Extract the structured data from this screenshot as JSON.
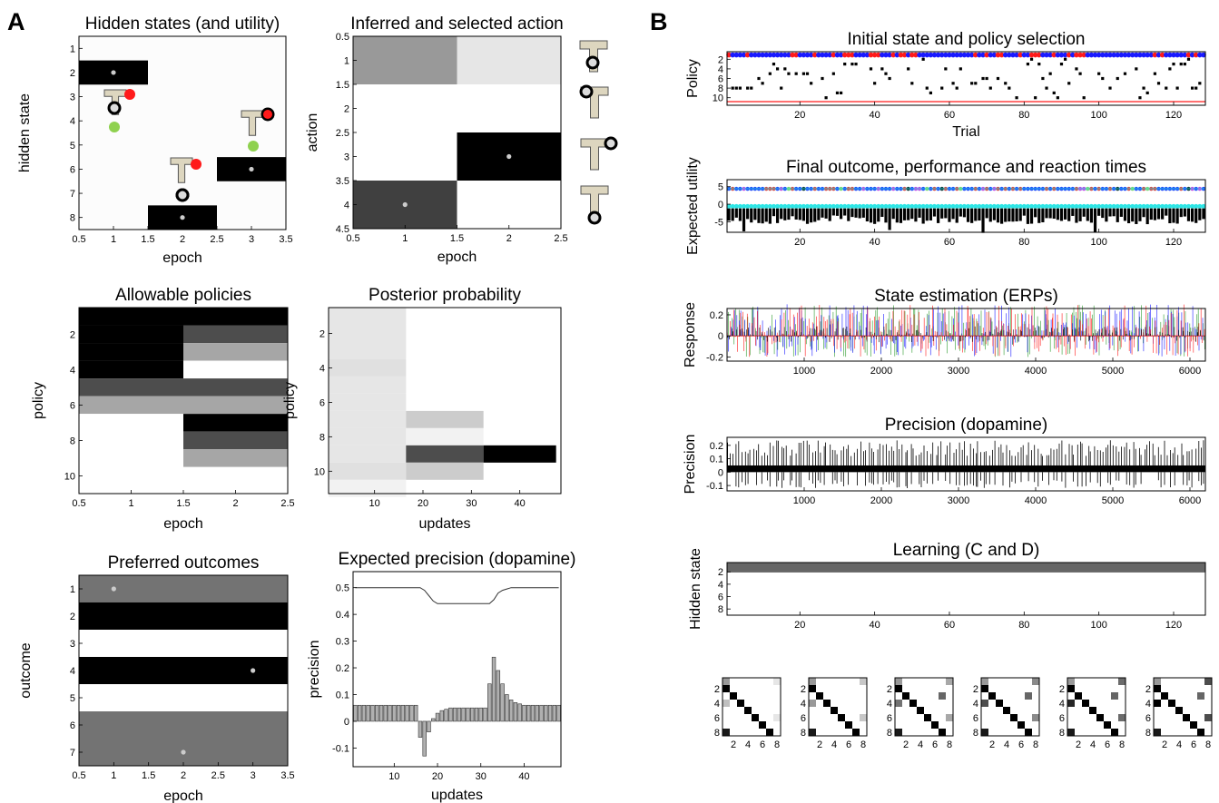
{
  "panel_labels": [
    "A",
    "B"
  ],
  "colors": {
    "tmaze": "#ddd6bf",
    "red": "#ff1a1a",
    "green": "#8fd14f",
    "blue": "#1a1aff",
    "cyan": "#2ee6e6",
    "magenta": "#e61ae6",
    "bar": "#b0b0b0"
  },
  "chart_data": [
    {
      "id": "hidden",
      "type": "heatmap",
      "title": "Hidden states (and utility)",
      "xlabel": "epoch",
      "ylabel": "hidden state",
      "xlim": [
        0.5,
        3.5
      ],
      "ylim": [
        0.5,
        8.5
      ],
      "xticks": [
        "0.5",
        "1",
        "1.5",
        "2",
        "2.5",
        "3",
        "3.5"
      ],
      "yticks": [
        "1",
        "2",
        "3",
        "4",
        "5",
        "6",
        "7",
        "8"
      ],
      "cells": [
        {
          "col": 1,
          "row": 2,
          "v": 1
        },
        {
          "col": 2,
          "row": 8,
          "v": 1
        },
        {
          "col": 3,
          "row": 6,
          "v": 1
        }
      ],
      "markers": [
        {
          "x": 1,
          "y": 2
        },
        {
          "x": 2,
          "y": 8
        },
        {
          "x": 3,
          "y": 6
        }
      ]
    },
    {
      "id": "action",
      "type": "heatmap",
      "title": "Inferred and selected action",
      "xlabel": "epoch",
      "ylabel": "action",
      "xlim": [
        0.5,
        2.5
      ],
      "ylim": [
        0.5,
        4.5
      ],
      "xticks": [
        "0.5",
        "1",
        "1.5",
        "2",
        "2.5"
      ],
      "yticks": [
        "0.5",
        "1",
        "1.5",
        "2",
        "2.5",
        "3",
        "3.5",
        "4",
        "4.5"
      ],
      "matrix": [
        [
          0.4,
          0.1
        ],
        [
          0,
          0
        ],
        [
          0,
          1
        ],
        [
          0.75,
          0
        ]
      ],
      "markers": [
        {
          "x": 2,
          "y": 3
        },
        {
          "x": 1,
          "y": 4
        }
      ]
    },
    {
      "id": "policies",
      "type": "heatmap",
      "title": "Allowable policies",
      "xlabel": "epoch",
      "ylabel": "policy",
      "xlim": [
        0.5,
        2.5
      ],
      "xticks": [
        "0.5",
        "1",
        "1.5",
        "2",
        "2.5"
      ],
      "yticks": [
        "2",
        "4",
        "6",
        "8",
        "10"
      ],
      "matrix": [
        [
          1,
          1
        ],
        [
          1,
          0.7
        ],
        [
          1,
          0.35
        ],
        [
          1,
          0
        ],
        [
          0.7,
          0.7
        ],
        [
          0.35,
          0.35
        ],
        [
          0,
          1
        ],
        [
          0,
          0.7
        ],
        [
          0,
          0.35
        ],
        [
          0,
          0
        ]
      ]
    },
    {
      "id": "posterior",
      "type": "heatmap",
      "title": "Posterior probability",
      "xlabel": "updates",
      "ylabel": "policy",
      "xticks": [
        "10",
        "20",
        "30",
        "40"
      ],
      "yticks": [
        "2",
        "4",
        "6",
        "8",
        "10"
      ],
      "segments": [
        [
          0.1,
          0.1,
          0.1,
          0.12,
          0.1,
          0.1,
          0.1,
          0.1,
          0.1,
          0.12,
          0.05
        ],
        [
          0,
          0,
          0,
          0,
          0,
          0,
          0.2,
          0.05,
          0.7,
          0.2,
          0
        ],
        [
          0,
          0,
          0,
          0,
          0,
          0,
          0,
          0,
          1,
          0,
          0
        ]
      ],
      "segment_edges": [
        1,
        17,
        33,
        48
      ]
    },
    {
      "id": "outcomes",
      "type": "heatmap",
      "title": "Preferred outcomes",
      "xlabel": "epoch",
      "ylabel": "outcome",
      "xlim": [
        0.5,
        3.5
      ],
      "ylim": [
        0.5,
        7.5
      ],
      "xticks": [
        "0.5",
        "1",
        "1.5",
        "2",
        "2.5",
        "3",
        "3.5"
      ],
      "yticks": [
        "1",
        "2",
        "3",
        "4",
        "5",
        "6",
        "7"
      ],
      "rows": [
        0.55,
        1,
        0,
        1,
        0,
        0.55,
        0.55
      ],
      "markers": [
        {
          "x": 1,
          "y": 1
        },
        {
          "x": 3,
          "y": 4
        },
        {
          "x": 2,
          "y": 7
        }
      ]
    },
    {
      "id": "precision",
      "type": "bar",
      "title": "Expected precision (dopamine)",
      "xlabel": "updates",
      "ylabel": "precision",
      "ylim": [
        -0.17,
        0.56
      ],
      "xticks": [
        "10",
        "20",
        "30",
        "40"
      ],
      "yticks": [
        "-0.1",
        "0",
        "0.1",
        "0.2",
        "0.3",
        "0.4",
        "0.5"
      ],
      "line": [
        0.5,
        0.5,
        0.5,
        0.5,
        0.5,
        0.5,
        0.5,
        0.5,
        0.5,
        0.5,
        0.5,
        0.5,
        0.5,
        0.5,
        0.5,
        0.5,
        0.49,
        0.47,
        0.45,
        0.44,
        0.44,
        0.44,
        0.44,
        0.44,
        0.44,
        0.44,
        0.44,
        0.44,
        0.44,
        0.44,
        0.44,
        0.44,
        0.455,
        0.48,
        0.49,
        0.495,
        0.5,
        0.5,
        0.5,
        0.5,
        0.5,
        0.5,
        0.5,
        0.5,
        0.5,
        0.5,
        0.5,
        0.5
      ],
      "values": [
        0.06,
        0.06,
        0.06,
        0.06,
        0.06,
        0.06,
        0.06,
        0.06,
        0.06,
        0.06,
        0.06,
        0.06,
        0.06,
        0.06,
        0.06,
        -0.06,
        -0.13,
        -0.04,
        0.01,
        0.03,
        0.04,
        0.045,
        0.05,
        0.05,
        0.05,
        0.05,
        0.05,
        0.05,
        0.05,
        0.05,
        0.05,
        0.14,
        0.24,
        0.19,
        0.14,
        0.1,
        0.08,
        0.07,
        0.065,
        0.06,
        0.06,
        0.06,
        0.06,
        0.06,
        0.06,
        0.06,
        0.06,
        0.06
      ]
    },
    {
      "id": "policyselection",
      "type": "scatter",
      "title": "Initial state and policy selection",
      "xlabel": "Trial",
      "ylabel": "Policy",
      "xticks": [
        "20",
        "40",
        "60",
        "80",
        "100",
        "120"
      ],
      "yticks": [
        "2",
        "4",
        "6",
        "8",
        "10"
      ]
    },
    {
      "id": "outcome",
      "type": "scatter",
      "title": "Final outcome, performance and reaction times",
      "ylabel": "Expected utility",
      "xticks": [
        "20",
        "40",
        "60",
        "80",
        "100",
        "120"
      ],
      "yticks": [
        "5",
        "0",
        "-5"
      ]
    },
    {
      "id": "erps",
      "type": "line",
      "title": "State estimation (ERPs)",
      "ylabel": "Response",
      "xticks": [
        "1000",
        "2000",
        "3000",
        "4000",
        "5000",
        "6000"
      ],
      "yticks": [
        "0.2",
        "0",
        "-0.2"
      ]
    },
    {
      "id": "dopamine",
      "type": "line",
      "title": "Precision (dopamine)",
      "ylabel": "Precision",
      "xticks": [
        "1000",
        "2000",
        "3000",
        "4000",
        "5000",
        "6000"
      ],
      "yticks": [
        "0.2",
        "0.1",
        "0",
        "-0.1"
      ]
    },
    {
      "id": "learning",
      "type": "heatmap",
      "title": "Learning (C and D)",
      "ylabel": "Hidden state",
      "xticks": [
        "20",
        "40",
        "60",
        "80",
        "100",
        "120"
      ],
      "yticks": [
        "2",
        "4",
        "6",
        "8"
      ]
    },
    {
      "id": "transitions",
      "type": "heatmap",
      "xticks": [
        "2",
        "4",
        "6",
        "8"
      ],
      "yticks": [
        "2",
        "4",
        "6",
        "8"
      ],
      "count": 6
    }
  ]
}
